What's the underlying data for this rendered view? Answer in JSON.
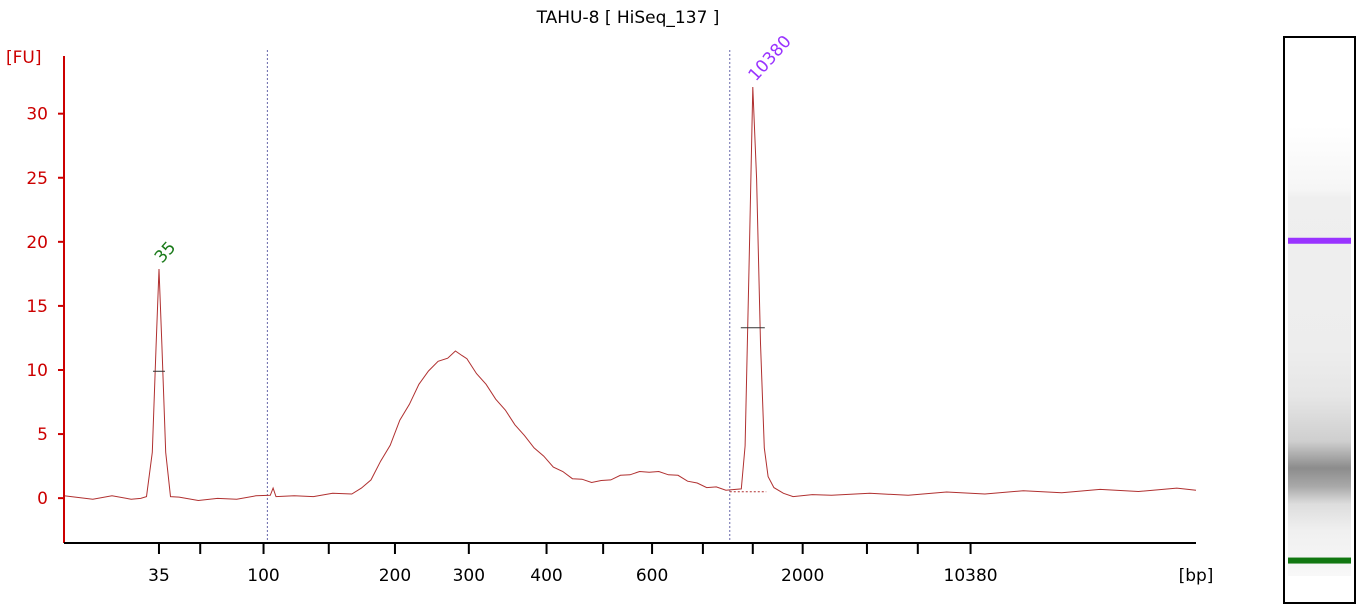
{
  "chart_data": {
    "type": "line",
    "title": "TAHU-8  [ HiSeq_137 ]",
    "ylabel": "[FU]",
    "xlabel": "[bp]",
    "ylim": [
      -3.5,
      34.5
    ],
    "yticks": [
      0,
      5,
      10,
      15,
      20,
      25,
      30
    ],
    "xticks": [
      {
        "label": "35",
        "major": true
      },
      {
        "label": "",
        "major": false
      },
      {
        "label": "100",
        "major": true
      },
      {
        "label": "",
        "major": false
      },
      {
        "label": "200",
        "major": true
      },
      {
        "label": "300",
        "major": true
      },
      {
        "label": "400",
        "major": true
      },
      {
        "label": "",
        "major": false
      },
      {
        "label": "600",
        "major": true
      },
      {
        "label": "",
        "major": false
      },
      {
        "label": "",
        "major": false
      },
      {
        "label": "2000",
        "major": true
      },
      {
        "label": "",
        "major": false
      },
      {
        "label": "",
        "major": false
      },
      {
        "label": "10380",
        "major": true
      }
    ],
    "grid": false,
    "series": [
      {
        "color": "#b03030",
        "points": [
          [
            0,
            0.1
          ],
          [
            3,
            0.0
          ],
          [
            5,
            0.1
          ],
          [
            7,
            0.0
          ],
          [
            8,
            -0.1
          ],
          [
            8.6,
            0.2
          ],
          [
            9.2,
            3.5
          ],
          [
            9.6,
            12.0
          ],
          [
            9.9,
            17.8
          ],
          [
            10.2,
            12.0
          ],
          [
            10.6,
            3.5
          ],
          [
            11.1,
            0.2
          ],
          [
            12,
            0.0
          ],
          [
            14,
            -0.1
          ],
          [
            16,
            -0.1
          ],
          [
            18,
            0.0
          ],
          [
            20,
            0.1
          ],
          [
            21.5,
            0.3
          ],
          [
            21.8,
            0.7
          ],
          [
            22.1,
            0.2
          ],
          [
            24,
            0.1
          ],
          [
            26,
            0.2
          ],
          [
            28,
            0.3
          ],
          [
            30,
            0.4
          ],
          [
            31,
            0.7
          ],
          [
            32,
            1.5
          ],
          [
            33,
            2.8
          ],
          [
            34,
            4.2
          ],
          [
            35,
            6.0
          ],
          [
            36,
            7.4
          ],
          [
            37,
            8.8
          ],
          [
            38,
            10.0
          ],
          [
            39,
            10.6
          ],
          [
            40,
            11.0
          ],
          [
            40.8,
            11.4
          ],
          [
            41.5,
            11.2
          ],
          [
            42,
            10.8
          ],
          [
            43,
            9.8
          ],
          [
            44,
            8.8
          ],
          [
            45,
            7.8
          ],
          [
            46,
            6.8
          ],
          [
            47,
            5.8
          ],
          [
            48,
            4.8
          ],
          [
            49,
            4.0
          ],
          [
            50,
            3.2
          ],
          [
            51,
            2.5
          ],
          [
            52,
            2.0
          ],
          [
            53,
            1.6
          ],
          [
            54,
            1.4
          ],
          [
            55,
            1.3
          ],
          [
            56,
            1.3
          ],
          [
            57,
            1.5
          ],
          [
            58,
            1.7
          ],
          [
            59,
            1.9
          ],
          [
            60,
            2.0
          ],
          [
            61,
            2.1
          ],
          [
            62,
            2.0
          ],
          [
            63,
            1.9
          ],
          [
            64,
            1.7
          ],
          [
            65,
            1.4
          ],
          [
            66,
            1.1
          ],
          [
            67,
            0.9
          ],
          [
            68,
            0.8
          ],
          [
            69,
            0.7
          ],
          [
            70,
            0.6
          ],
          [
            70.6,
            0.8
          ],
          [
            71,
            4.0
          ],
          [
            71.4,
            18.0
          ],
          [
            71.8,
            32.0
          ],
          [
            72.2,
            25.0
          ],
          [
            72.6,
            12.0
          ],
          [
            73,
            4.0
          ],
          [
            73.4,
            1.6
          ],
          [
            74,
            0.9
          ],
          [
            75,
            0.3
          ],
          [
            76,
            0.2
          ],
          [
            78,
            0.2
          ],
          [
            80,
            0.3
          ],
          [
            84,
            0.3
          ],
          [
            88,
            0.3
          ],
          [
            92,
            0.4
          ],
          [
            96,
            0.4
          ],
          [
            100,
            0.5
          ],
          [
            104,
            0.5
          ],
          [
            108,
            0.6
          ],
          [
            112,
            0.6
          ],
          [
            116,
            0.7
          ],
          [
            118,
            0.7
          ]
        ]
      }
    ],
    "markers": [
      {
        "x": 21.2,
        "label": ""
      },
      {
        "x": 69.4,
        "label": ""
      }
    ],
    "peaks": [
      {
        "x": 9.9,
        "y": 17.8,
        "label": "35",
        "color": "#1a7a1a",
        "half": 9.9
      },
      {
        "x": 71.8,
        "y": 32.0,
        "label": "10380",
        "color": "#9933ff",
        "half": 13.3
      }
    ],
    "gel": {
      "bands": [
        {
          "name": "upper-marker",
          "color": "#9933ff",
          "pos": 0.64
        },
        {
          "name": "lower-marker",
          "color": "#117711",
          "pos": 0.075
        }
      ]
    }
  }
}
